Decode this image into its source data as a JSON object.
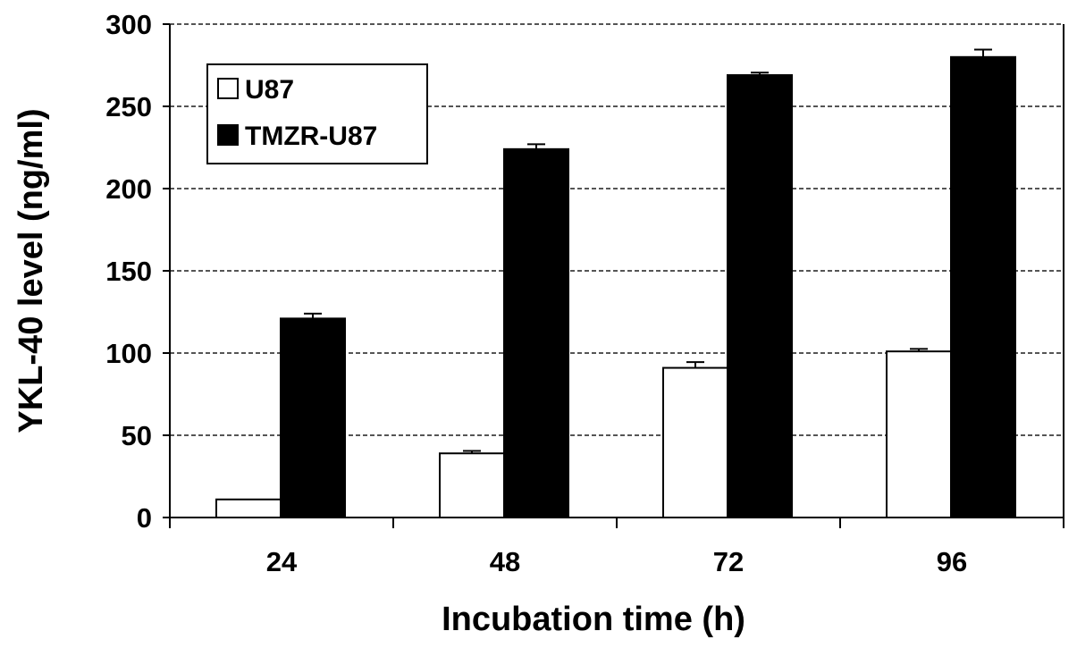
{
  "chart_data": {
    "type": "bar",
    "title": "",
    "xlabel": "Incubation time (h)",
    "ylabel": "YKL-40 level (ng/ml)",
    "categories": [
      "24",
      "48",
      "72",
      "96"
    ],
    "ylim": [
      0,
      300
    ],
    "yticks": [
      "0",
      "50",
      "100",
      "150",
      "200",
      "250",
      "300"
    ],
    "grid": true,
    "legend_position": "top-left",
    "series": [
      {
        "name": "U87",
        "values": [
          11,
          39,
          91,
          101
        ],
        "errors": [
          0,
          1.5,
          3.5,
          1.5
        ],
        "color": "#ffffff"
      },
      {
        "name": "TMZR-U87",
        "values": [
          121,
          224,
          269,
          280
        ],
        "errors": [
          3,
          3,
          1.5,
          4.5
        ],
        "color": "#000000"
      }
    ]
  }
}
